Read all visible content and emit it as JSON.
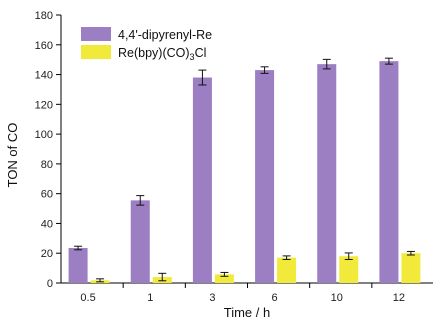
{
  "chart_data": {
    "type": "bar",
    "xlabel": "Time / h",
    "ylabel": "TON of CO",
    "ylim": [
      0,
      180
    ],
    "yticks": [
      0,
      20,
      40,
      60,
      80,
      100,
      120,
      140,
      160,
      180
    ],
    "categories": [
      "0.5",
      "1",
      "3",
      "6",
      "10",
      "12"
    ],
    "grid": false,
    "legend_position": "top-left",
    "series": [
      {
        "name": "4,4'-dipyrenyl-Re",
        "color": "#9b7fc2",
        "values": [
          23.5,
          55.5,
          138,
          143,
          147,
          149
        ],
        "errors": [
          1.2,
          3.2,
          5,
          2.2,
          3.2,
          2
        ]
      },
      {
        "name": "Re(bpy)(CO)3Cl",
        "legend_parts": [
          "Re(bpy)(CO)",
          "3",
          "Cl"
        ],
        "color": "#f2ea3a",
        "values": [
          1.8,
          4,
          5.8,
          17,
          18,
          20
        ],
        "errors": [
          1,
          2.5,
          1.3,
          1.2,
          2.2,
          1.2
        ]
      }
    ]
  }
}
